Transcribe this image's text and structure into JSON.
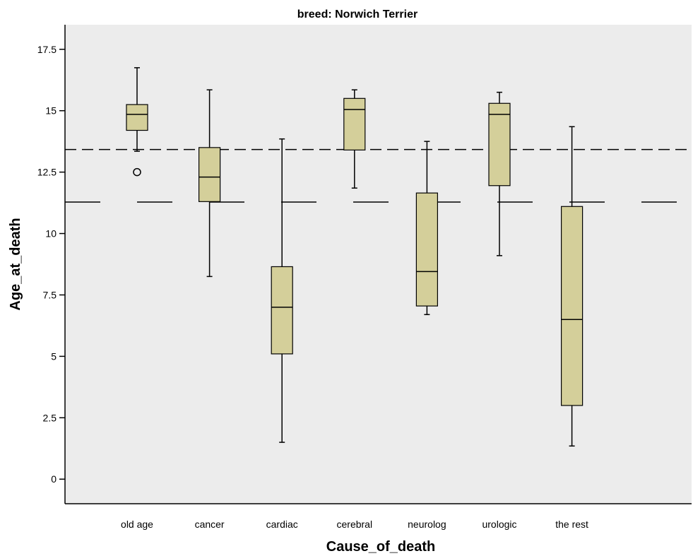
{
  "chart_data": {
    "type": "boxplot",
    "title": "breed: Norwich Terrier",
    "xlabel": "Cause_of_death",
    "ylabel": "Age_at_death",
    "ylim": [
      -1,
      18.5
    ],
    "yticks": [
      0,
      2.5,
      5,
      7.5,
      10,
      12.5,
      15,
      17.5
    ],
    "ytick_labels": [
      "0",
      "2.5",
      "5",
      "7.5",
      "10",
      "12.5",
      "15",
      "17.5"
    ],
    "categories": [
      "old age",
      "cancer",
      "cardiac",
      "cerebral",
      "neurolog",
      "urologic",
      "the rest"
    ],
    "boxes": [
      {
        "category": "old age",
        "whisker_low": 13.35,
        "q1": 14.2,
        "median": 14.85,
        "q3": 15.25,
        "whisker_high": 16.75,
        "outliers": [
          12.5
        ]
      },
      {
        "category": "cancer",
        "whisker_low": 8.25,
        "q1": 11.3,
        "median": 12.3,
        "q3": 13.5,
        "whisker_high": 15.85,
        "outliers": []
      },
      {
        "category": "cardiac",
        "whisker_low": 1.5,
        "q1": 5.1,
        "median": 7.0,
        "q3": 8.65,
        "whisker_high": 13.85,
        "outliers": []
      },
      {
        "category": "cerebral",
        "whisker_low": 11.85,
        "q1": 13.4,
        "median": 15.05,
        "q3": 15.5,
        "whisker_high": 15.85,
        "outliers": []
      },
      {
        "category": "neurolog",
        "whisker_low": 6.7,
        "q1": 7.05,
        "median": 8.45,
        "q3": 11.65,
        "whisker_high": 13.75,
        "outliers": []
      },
      {
        "category": "urologic",
        "whisker_low": 9.1,
        "q1": 11.95,
        "median": 14.85,
        "q3": 15.3,
        "whisker_high": 15.75,
        "outliers": []
      },
      {
        "category": "the rest",
        "whisker_low": 1.35,
        "q1": 3.0,
        "median": 6.5,
        "q3": 11.1,
        "whisker_high": 14.35,
        "outliers": []
      }
    ],
    "reference_lines": [
      {
        "y": 13.42,
        "style": "short-dash"
      },
      {
        "y": 11.28,
        "style": "long-dash"
      }
    ],
    "grid": false,
    "colors": {
      "plot_background": "#ececec",
      "box_fill": "#d4cf9a",
      "stroke": "#000000"
    }
  }
}
